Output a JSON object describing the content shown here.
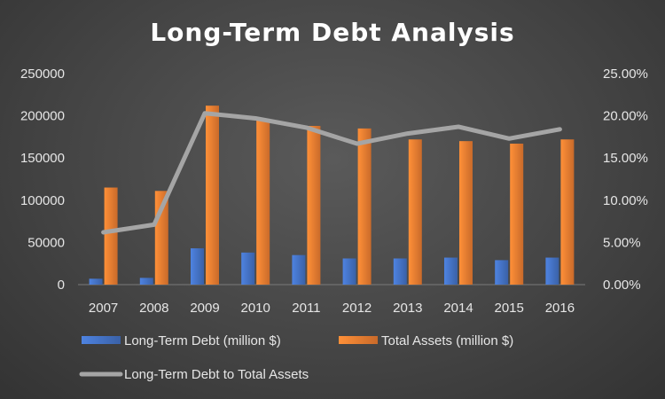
{
  "chart_data": {
    "type": "bar",
    "title": "Long-Term Debt Analysis",
    "categories": [
      "2007",
      "2008",
      "2009",
      "2010",
      "2011",
      "2012",
      "2013",
      "2014",
      "2015",
      "2016"
    ],
    "series": [
      {
        "name": "Long-Term Debt (million $)",
        "kind": "bar",
        "axis": "left",
        "color": "#4472C4",
        "values": [
          7000,
          8000,
          43000,
          38000,
          35000,
          31000,
          31000,
          32000,
          29000,
          32000
        ]
      },
      {
        "name": "Total Assets (million $)",
        "kind": "bar",
        "axis": "left",
        "color": "#ED7D31",
        "values": [
          115000,
          111000,
          212000,
          196000,
          188000,
          185000,
          172000,
          170000,
          167000,
          172000
        ]
      },
      {
        "name": "Long-Term Debt to Total Assets",
        "kind": "line",
        "axis": "right",
        "color": "#A5A5A5",
        "values": [
          0.062,
          0.071,
          0.203,
          0.197,
          0.186,
          0.167,
          0.179,
          0.187,
          0.173,
          0.184
        ]
      }
    ],
    "y_left": {
      "min": 0,
      "max": 250000,
      "step": 50000,
      "tick_labels": [
        "0",
        "50000",
        "100000",
        "150000",
        "200000",
        "250000"
      ]
    },
    "y_right": {
      "min": 0,
      "max": 0.25,
      "step": 0.05,
      "tick_labels": [
        "0.00%",
        "5.00%",
        "10.00%",
        "15.00%",
        "20.00%",
        "25.00%"
      ]
    },
    "grid": false,
    "legend_position": "bottom",
    "background_color": "#404040"
  }
}
